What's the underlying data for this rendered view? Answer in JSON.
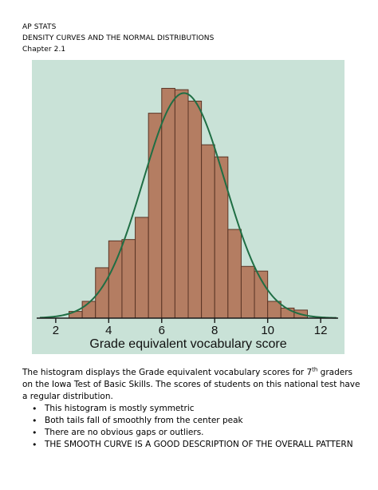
{
  "header": {
    "line1": "AP STATS",
    "line2": "DENSITY CURVES AND THE NORMAL DISTRIBUTIONS",
    "line3": "Chapter 2.1"
  },
  "chart_data": {
    "type": "bar",
    "xlabel": "Grade equivalent vocabulary score",
    "xlim": [
      1.1,
      12.9
    ],
    "xticks": [
      2,
      4,
      6,
      8,
      10,
      12
    ],
    "bin_width": 0.5,
    "bins": [
      {
        "x0": 2.5,
        "value": 1.0
      },
      {
        "x0": 3.0,
        "value": 2.5
      },
      {
        "x0": 3.5,
        "value": 7.5
      },
      {
        "x0": 4.0,
        "value": 11.5
      },
      {
        "x0": 4.5,
        "value": 11.7
      },
      {
        "x0": 5.0,
        "value": 15.0
      },
      {
        "x0": 5.5,
        "value": 30.5
      },
      {
        "x0": 6.0,
        "value": 34.2
      },
      {
        "x0": 6.5,
        "value": 34.0
      },
      {
        "x0": 7.0,
        "value": 32.3
      },
      {
        "x0": 7.5,
        "value": 25.8
      },
      {
        "x0": 8.0,
        "value": 24.0
      },
      {
        "x0": 8.5,
        "value": 13.2
      },
      {
        "x0": 9.0,
        "value": 7.7
      },
      {
        "x0": 9.5,
        "value": 7.0
      },
      {
        "x0": 10.0,
        "value": 2.5
      },
      {
        "x0": 10.5,
        "value": 1.5
      },
      {
        "x0": 11.0,
        "value": 1.2
      }
    ],
    "curve": {
      "type": "normal",
      "mean": 6.84,
      "sd": 1.55,
      "peak": 33.5
    },
    "ylim": [
      0,
      37
    ],
    "grid": false,
    "colors": {
      "background": "#c9e2d7",
      "bar_fill": "#b47d62",
      "bar_stroke": "#5a3525",
      "curve": "#1f6e44",
      "axis": "#1a1a1a"
    }
  },
  "body": {
    "para_a": "The histogram displays the Grade equivalent vocabulary scores for 7",
    "para_sup": "th",
    "para_b": " graders on the Iowa Test of Basic Skills.  The scores of students on this national test have a regular distribution.",
    "bullets": [
      "This histogram is mostly symmetric",
      "Both tails fall of smoothly from the center peak",
      "There are no obvious gaps or outliers.",
      "THE SMOOTH CURVE IS A GOOD DESCRIPTION OF THE OVERALL PATTERN"
    ]
  }
}
